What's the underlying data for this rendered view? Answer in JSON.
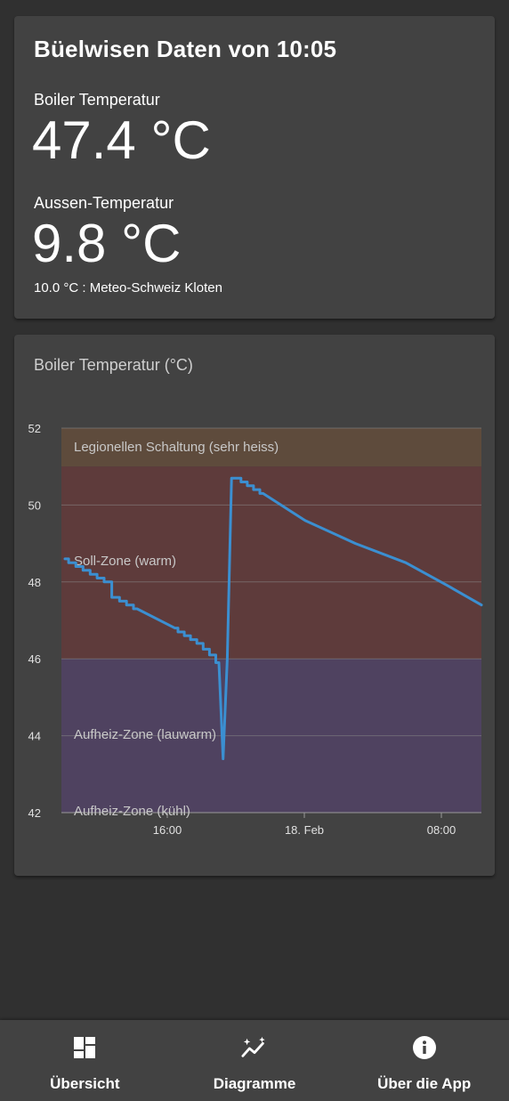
{
  "summary": {
    "title": "Büelwisen Daten von 10:05",
    "boiler_label": "Boiler Temperatur",
    "boiler_value": "47.4 °C",
    "outside_label": "Aussen-Temperatur",
    "outside_value": "9.8 °C",
    "outside_note": "10.0 °C : Meteo-Schweiz Kloten"
  },
  "chart_card": {
    "title": "Boiler Temperatur (°C)"
  },
  "chart_data": {
    "type": "line",
    "title": "Boiler Temperatur (°C)",
    "ylim": [
      42,
      52
    ],
    "yticks": [
      "52",
      "50",
      "48",
      "46",
      "44",
      "42"
    ],
    "xticks": [
      "16:00",
      "18. Feb",
      "08:00"
    ],
    "grid": true,
    "zones": [
      {
        "label": "Legionellen Schaltung (sehr heiss)",
        "from": 51,
        "to": 52,
        "color": "#5e4b3c"
      },
      {
        "label": "Soll-Zone (warm)",
        "from": 46,
        "to": 51,
        "color": "#5e3b3b"
      },
      {
        "label": "Aufheiz-Zone (lauwarm)",
        "from": 44,
        "to": 46,
        "color": "#4f4260"
      },
      {
        "label": "Aufheiz-Zone (kühl)",
        "from": 42,
        "to": 44,
        "color": "#4f4260"
      }
    ],
    "series": [
      {
        "color": "#3b8fd1",
        "points": [
          [
            0,
            48.6
          ],
          [
            0.06,
            48.3
          ],
          [
            0.11,
            48.0
          ],
          [
            0.13,
            47.6
          ],
          [
            0.18,
            47.3
          ],
          [
            0.27,
            46.8
          ],
          [
            0.33,
            46.4
          ],
          [
            0.36,
            46.1
          ],
          [
            0.375,
            45.9
          ],
          [
            0.385,
            43.4
          ],
          [
            0.395,
            46.0
          ],
          [
            0.405,
            50.7
          ],
          [
            0.42,
            50.7
          ],
          [
            0.48,
            50.3
          ],
          [
            0.58,
            49.6
          ],
          [
            0.7,
            49.0
          ],
          [
            0.82,
            48.5
          ],
          [
            0.92,
            47.9
          ],
          [
            1.0,
            47.4
          ]
        ]
      }
    ]
  },
  "nav": {
    "items": [
      {
        "label": "Übersicht",
        "icon": "dashboard-icon"
      },
      {
        "label": "Diagramme",
        "icon": "chart-sparkle-icon"
      },
      {
        "label": "Über die App",
        "icon": "info-icon"
      }
    ]
  }
}
